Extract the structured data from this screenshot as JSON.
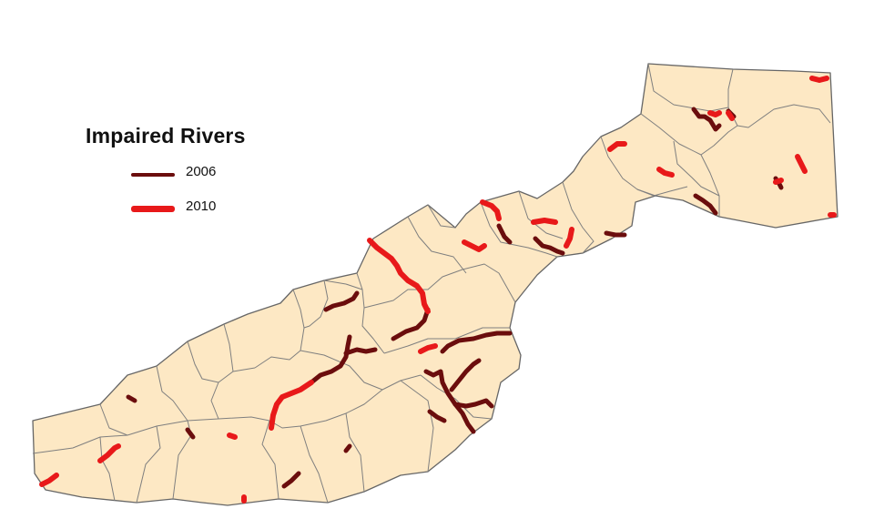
{
  "legend": {
    "title": "Impaired Rivers",
    "items": [
      {
        "label": "2006",
        "color": "#6b0d0d"
      },
      {
        "label": "2010",
        "color": "#e8191a"
      }
    ]
  },
  "colors": {
    "land": "#fde8c4",
    "boundary": "#7f7f7f",
    "river_2006": "#6b0d0d",
    "river_2010": "#e8191a"
  }
}
